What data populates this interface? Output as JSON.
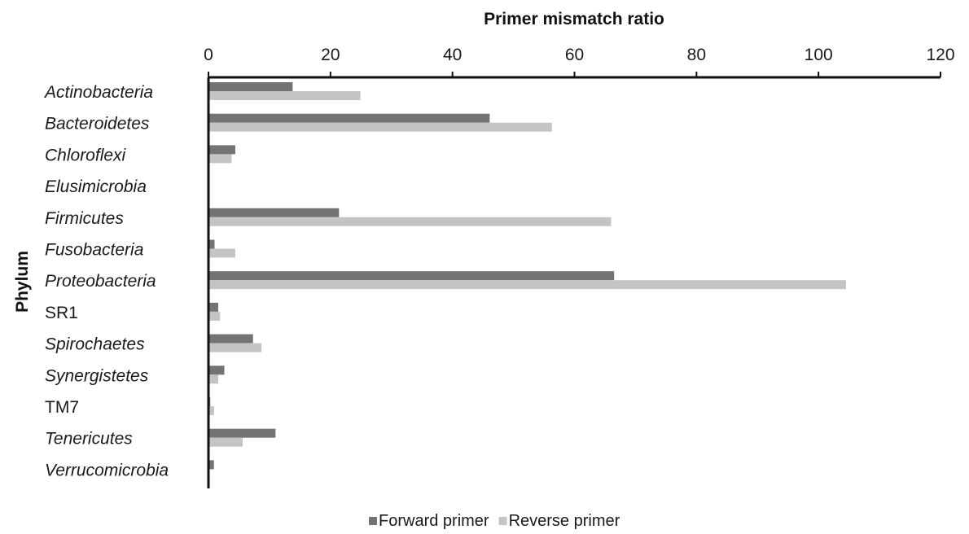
{
  "chart_data": {
    "type": "bar",
    "orientation": "horizontal",
    "title": "",
    "xlabel": "Primer mismatch ratio",
    "ylabel": "Phylum",
    "xlim": [
      0,
      120
    ],
    "xticks": [
      "0",
      "20",
      "40",
      "60",
      "80",
      "100",
      "120"
    ],
    "xaxis_position": "top",
    "grid": false,
    "legend_position": "bottom",
    "categories": [
      {
        "name": "Actinobacteria",
        "italic": true
      },
      {
        "name": "Bacteroidetes",
        "italic": true
      },
      {
        "name": "Chloroflexi",
        "italic": true
      },
      {
        "name": "Elusimicrobia",
        "italic": true
      },
      {
        "name": "Firmicutes",
        "italic": true
      },
      {
        "name": "Fusobacteria",
        "italic": true
      },
      {
        "name": "Proteobacteria",
        "italic": true
      },
      {
        "name": "SR1",
        "italic": false
      },
      {
        "name": "Spirochaetes",
        "italic": true
      },
      {
        "name": "Synergistetes",
        "italic": true
      },
      {
        "name": "TM7",
        "italic": false
      },
      {
        "name": "Tenericutes",
        "italic": true
      },
      {
        "name": "Verrucomicrobia",
        "italic": true
      }
    ],
    "series": [
      {
        "name": "Forward primer",
        "color": "#737373",
        "values": [
          13.8,
          46.1,
          4.4,
          0,
          21.4,
          1.0,
          66.5,
          1.6,
          7.3,
          2.6,
          0.3,
          11.0,
          0.9
        ]
      },
      {
        "name": "Reverse primer",
        "color": "#c4c4c4",
        "values": [
          24.9,
          56.3,
          3.8,
          0,
          66.0,
          4.4,
          104.5,
          1.9,
          8.7,
          1.6,
          0.9,
          5.6,
          0
        ]
      }
    ]
  }
}
